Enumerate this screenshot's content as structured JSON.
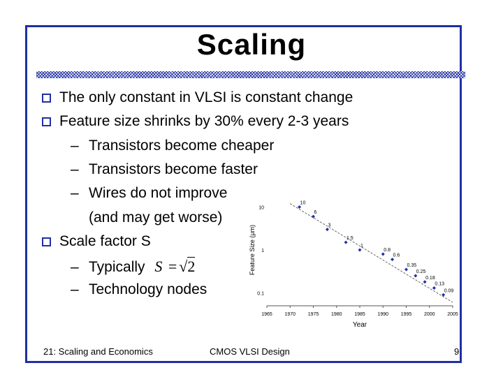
{
  "slide": {
    "title": "Scaling",
    "bullets": [
      {
        "level": 1,
        "text": "The only constant in VLSI is constant change"
      },
      {
        "level": 1,
        "text": "Feature size shrinks by 30% every 2-3 years"
      },
      {
        "level": 2,
        "text": "Transistors become cheaper"
      },
      {
        "level": 2,
        "text": "Transistors become faster"
      },
      {
        "level": 2,
        "text": "Wires do not improve"
      },
      {
        "level": 3,
        "text": "(and may get worse)"
      },
      {
        "level": 1,
        "text": "Scale factor S"
      },
      {
        "level": 2,
        "text": "Typically"
      },
      {
        "level": 2,
        "text": "Technology nodes"
      }
    ],
    "formula": {
      "lhs": "S",
      "eq": "=",
      "rad": "√",
      "radicand": "2"
    },
    "footer": {
      "left": "21: Scaling and Economics",
      "center": "CMOS VLSI Design",
      "right": "9"
    },
    "colors": {
      "accent": "#1f2fa3",
      "marker": "#1f2fa3"
    }
  },
  "chart_data": {
    "type": "scatter",
    "title": "",
    "xlabel": "Year",
    "ylabel": "Feature Size (µm)",
    "xlim": [
      1965,
      2005
    ],
    "ylim": [
      0.05,
      20
    ],
    "yscale": "log",
    "x_ticks": [
      "1965",
      "1970",
      "1975",
      "1980",
      "1985",
      "1990",
      "1995",
      "2000",
      "2005"
    ],
    "y_ticks": [
      {
        "value": 10,
        "label": "10"
      },
      {
        "value": 1,
        "label": "1"
      },
      {
        "value": 0.1,
        "label": "0.1"
      }
    ],
    "points": [
      {
        "x": 1972,
        "y": 10,
        "label": "10"
      },
      {
        "x": 1975,
        "y": 6,
        "label": "6"
      },
      {
        "x": 1978,
        "y": 3,
        "label": "3"
      },
      {
        "x": 1982,
        "y": 1.5,
        "label": "1.5"
      },
      {
        "x": 1985,
        "y": 1,
        "label": "1"
      },
      {
        "x": 1990,
        "y": 0.8,
        "label": "0.8"
      },
      {
        "x": 1992,
        "y": 0.6,
        "label": "0.6"
      },
      {
        "x": 1995,
        "y": 0.35,
        "label": "0.35"
      },
      {
        "x": 1997,
        "y": 0.25,
        "label": "0.25"
      },
      {
        "x": 1999,
        "y": 0.18,
        "label": "0.18"
      },
      {
        "x": 2001,
        "y": 0.13,
        "label": "0.13"
      },
      {
        "x": 2003,
        "y": 0.09,
        "label": "0.09"
      }
    ],
    "trendline": {
      "style": "dashed",
      "from": {
        "x": 1970,
        "y": 12
      },
      "to": {
        "x": 2005,
        "y": 0.06
      }
    },
    "grid": false
  }
}
